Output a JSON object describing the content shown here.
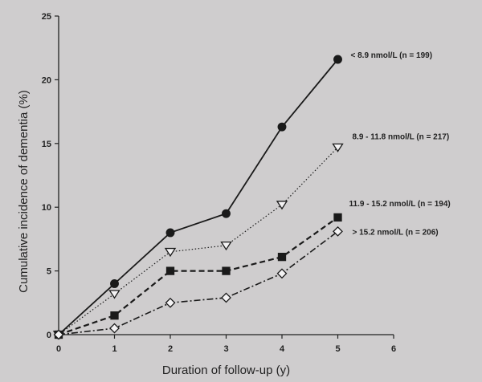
{
  "chart_data": {
    "type": "line",
    "xlabel": "Duration of follow-up (y)",
    "ylabel": "Cumulative incidence of dementia (%)",
    "xlim": [
      0,
      6
    ],
    "ylim": [
      0,
      25
    ],
    "x_ticks": [
      "0",
      "1",
      "2",
      "3",
      "4",
      "5",
      "6"
    ],
    "y_ticks": [
      "0",
      "5",
      "10",
      "15",
      "20",
      "25"
    ],
    "grid": false,
    "legend": "labels at line ends (right)",
    "x": [
      0,
      1,
      2,
      3,
      4,
      5
    ],
    "series": [
      {
        "name": "< 8.9 nmol/L (n = 199)",
        "marker": "filled-circle",
        "line": "solid",
        "values": [
          0,
          4.0,
          8.0,
          9.5,
          16.3,
          21.6
        ]
      },
      {
        "name": "8.9 - 11.8 nmol/L (n = 217)",
        "marker": "open-triangle-down",
        "line": "dotted",
        "values": [
          0,
          3.2,
          6.5,
          7.0,
          10.2,
          14.7
        ]
      },
      {
        "name": "11.9 - 15.2 nmol/L (n = 194)",
        "marker": "filled-square",
        "line": "dashed",
        "values": [
          0,
          1.5,
          5.0,
          5.0,
          6.1,
          9.2
        ]
      },
      {
        "name": "> 15.2 nmol/L (n = 206)",
        "marker": "open-diamond",
        "line": "dash-dot",
        "values": [
          0,
          0.5,
          2.5,
          2.9,
          4.8,
          8.1
        ]
      }
    ]
  }
}
